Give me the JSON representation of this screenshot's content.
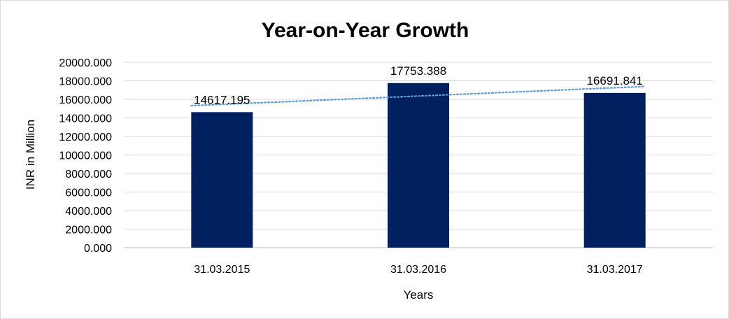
{
  "chart_data": {
    "type": "bar",
    "title": "Year-on-Year Growth",
    "xlabel": "Years",
    "ylabel": "INR in Million",
    "categories": [
      "31.03.2015",
      "31.03.2016",
      "31.03.2017"
    ],
    "values": [
      14617.195,
      17753.388,
      16691.841
    ],
    "data_labels": [
      "14617.195",
      "17753.388",
      "16691.841"
    ],
    "y_ticks": [
      "0.000",
      "2000.000",
      "4000.000",
      "6000.000",
      "8000.000",
      "10000.000",
      "12000.000",
      "14000.000",
      "16000.000",
      "18000.000",
      "20000.000"
    ],
    "ylim": [
      0,
      20000
    ],
    "grid": true,
    "trendline": {
      "type": "linear",
      "style": "dotted",
      "color": "#5b9bd5"
    },
    "bar_color": "#002060"
  }
}
